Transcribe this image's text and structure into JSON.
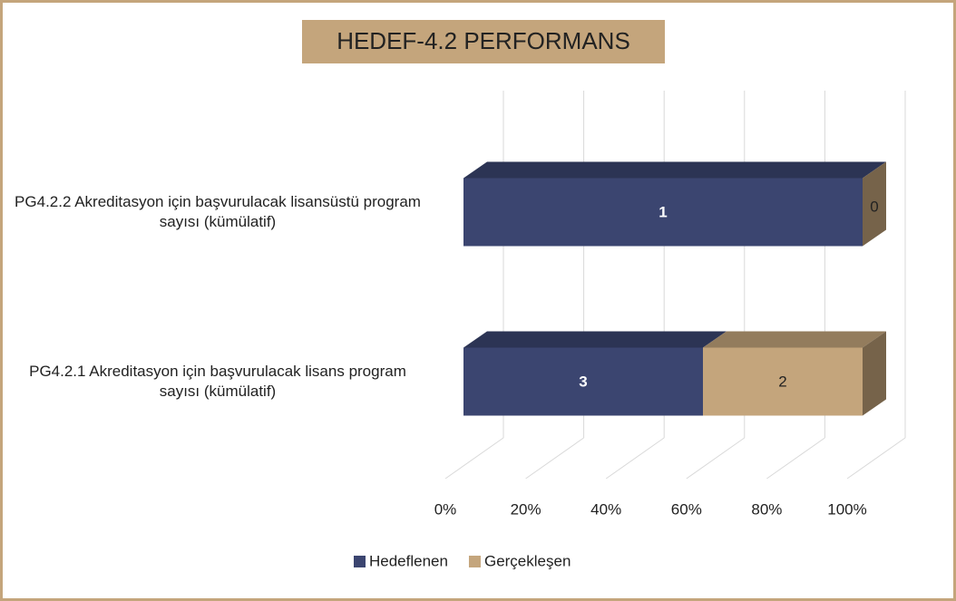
{
  "chart_data": {
    "type": "bar",
    "stacking": "percent",
    "orientation": "horizontal",
    "title": "HEDEF-4.2 PERFORMANS",
    "categories": [
      "PG4.2.2 Akreditasyon için başvurulacak lisansüstü program sayısı (kümülatif)",
      "PG4.2.1 Akreditasyon için başvurulacak lisans program sayısı (kümülatif)"
    ],
    "series": [
      {
        "name": "Hedeflenen",
        "color": "#3b4570",
        "values": [
          1,
          3
        ]
      },
      {
        "name": "Gerçekleşen",
        "color": "#c4a57c",
        "values": [
          0,
          2
        ]
      }
    ],
    "xlim": [
      0,
      100
    ],
    "xticks": [
      {
        "value": 0,
        "label": "0%"
      },
      {
        "value": 20,
        "label": "20%"
      },
      {
        "value": 40,
        "label": "40%"
      },
      {
        "value": 60,
        "label": "60%"
      },
      {
        "value": 80,
        "label": "80%"
      },
      {
        "value": 100,
        "label": "100%"
      }
    ],
    "grid": true,
    "legend": "bottom"
  }
}
